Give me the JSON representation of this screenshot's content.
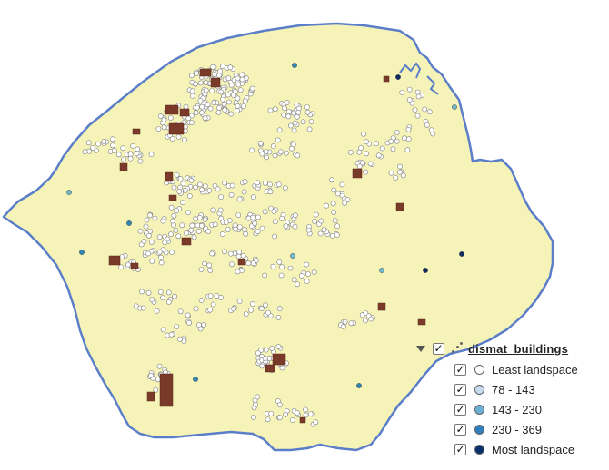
{
  "map": {
    "land_color": "#f5f3b8",
    "boundary_color": "#5b7ec8",
    "building_color": "#7a3a2a",
    "cluster_point_fill": "#ffffff",
    "cluster_point_stroke": "#7f7f7f",
    "sparse_point_colors": [
      "#6fb6c9",
      "#2f86b0",
      "#0f2b5e"
    ]
  },
  "legend": {
    "layer_name": "dismat_buildings",
    "layer_checked": true,
    "items": [
      {
        "label": "Least landspace",
        "color": "#ffffff",
        "checked": true
      },
      {
        "label": "78 - 143",
        "color": "#c6dbef",
        "checked": true
      },
      {
        "label": "143 - 230",
        "color": "#6baed6",
        "checked": true
      },
      {
        "label": "230 - 369",
        "color": "#2f7fbf",
        "checked": true
      },
      {
        "label": "Most landspace",
        "color": "#08306b",
        "checked": true
      }
    ]
  }
}
